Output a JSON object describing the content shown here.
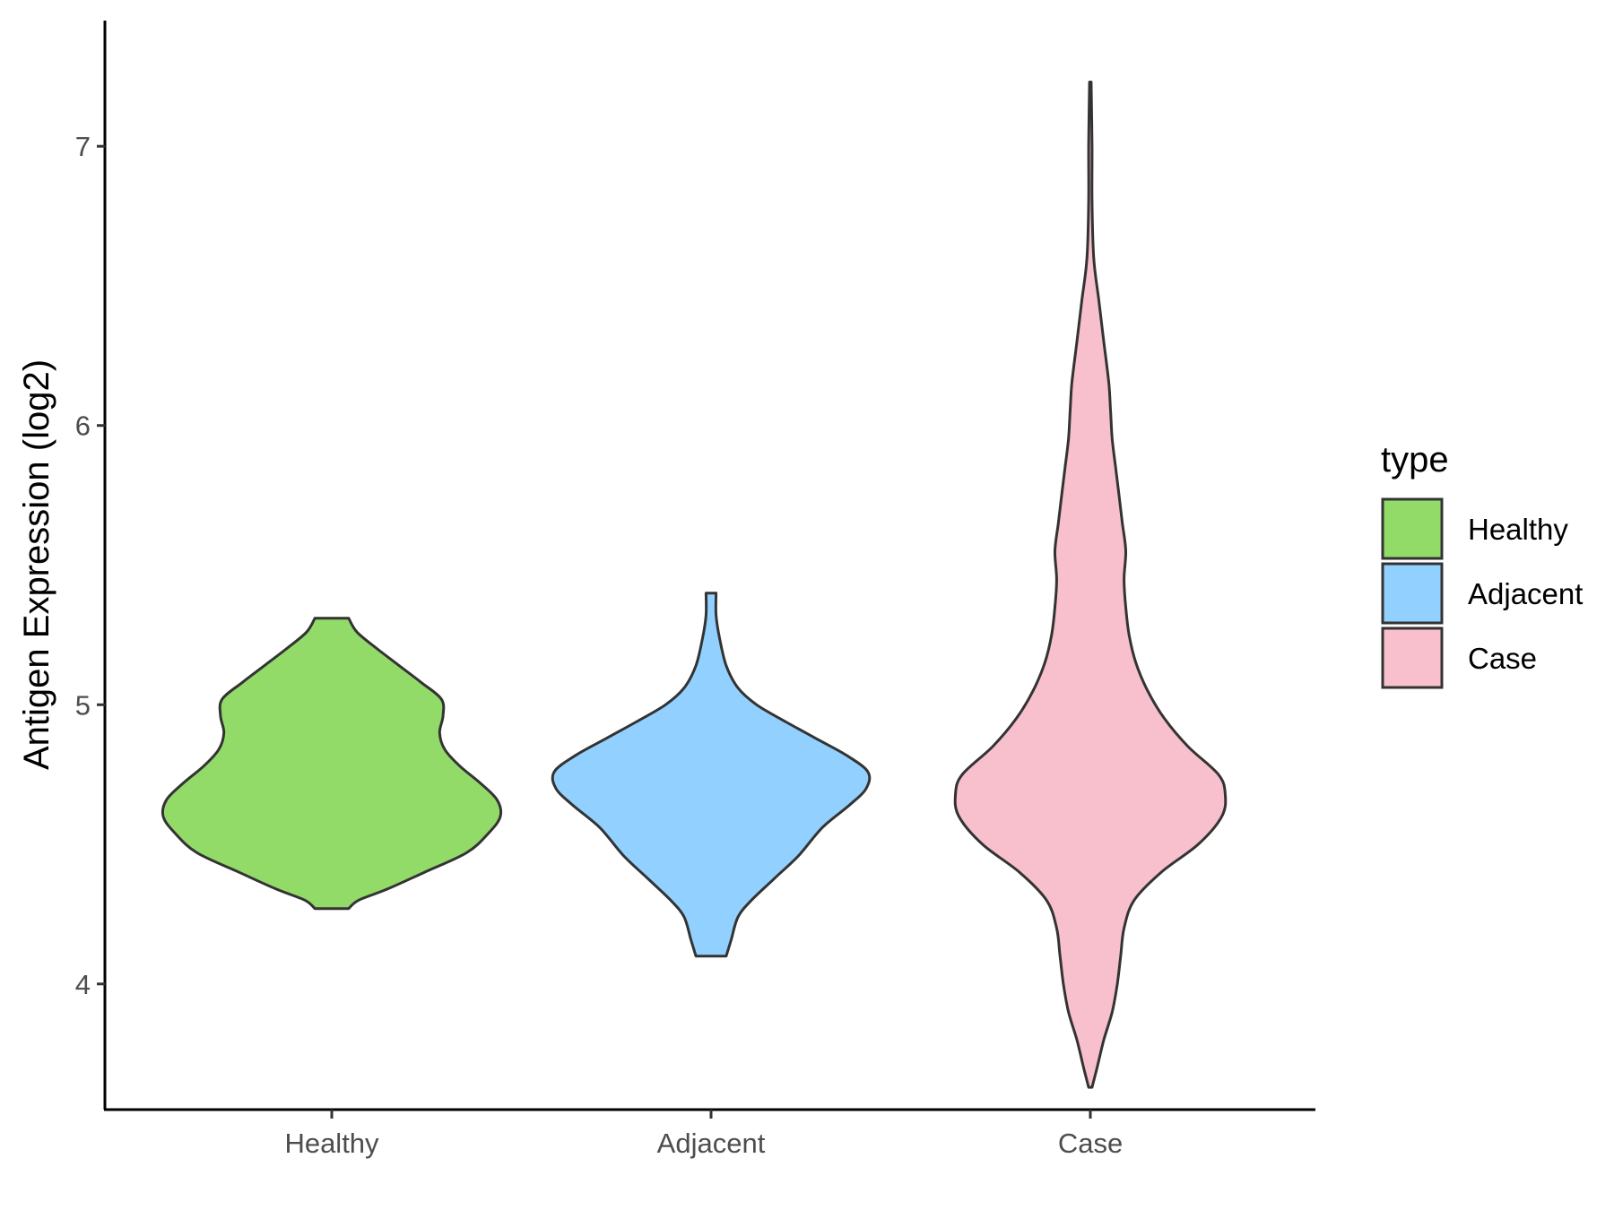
{
  "chart_data": {
    "type": "violin",
    "title": "",
    "xlabel": "",
    "ylabel": "Antigen Expression (log2)",
    "ylim": [
      3.55,
      7.45
    ],
    "yticks": [
      "4",
      "5",
      "6",
      "7"
    ],
    "grid": false,
    "categories": [
      "Healthy",
      "Adjacent",
      "Case"
    ],
    "legend": {
      "title": "type",
      "position": "right",
      "entries": [
        "Healthy",
        "Adjacent",
        "Case"
      ]
    },
    "colors": {
      "Healthy": "#93db69",
      "Adjacent": "#92d1ff",
      "Case": "#f7c0cc",
      "outline": "#333333"
    },
    "series": [
      {
        "name": "Healthy",
        "min": 4.27,
        "max": 5.31,
        "density": [
          [
            4.27,
            0.1
          ],
          [
            4.3,
            0.16
          ],
          [
            4.34,
            0.33
          ],
          [
            4.4,
            0.55
          ],
          [
            4.47,
            0.8
          ],
          [
            4.54,
            0.93
          ],
          [
            4.6,
            1.0
          ],
          [
            4.66,
            0.98
          ],
          [
            4.72,
            0.88
          ],
          [
            4.78,
            0.76
          ],
          [
            4.84,
            0.67
          ],
          [
            4.9,
            0.64
          ],
          [
            4.96,
            0.66
          ],
          [
            5.02,
            0.65
          ],
          [
            5.08,
            0.53
          ],
          [
            5.14,
            0.4
          ],
          [
            5.2,
            0.27
          ],
          [
            5.26,
            0.15
          ],
          [
            5.31,
            0.1
          ]
        ]
      },
      {
        "name": "Adjacent",
        "min": 4.1,
        "max": 5.4,
        "density": [
          [
            4.1,
            0.09
          ],
          [
            4.16,
            0.12
          ],
          [
            4.24,
            0.16
          ],
          [
            4.3,
            0.24
          ],
          [
            4.38,
            0.38
          ],
          [
            4.46,
            0.52
          ],
          [
            4.56,
            0.66
          ],
          [
            4.64,
            0.82
          ],
          [
            4.7,
            0.92
          ],
          [
            4.76,
            0.93
          ],
          [
            4.82,
            0.8
          ],
          [
            4.88,
            0.62
          ],
          [
            4.94,
            0.44
          ],
          [
            5.0,
            0.27
          ],
          [
            5.06,
            0.16
          ],
          [
            5.14,
            0.09
          ],
          [
            5.24,
            0.05
          ],
          [
            5.32,
            0.03
          ],
          [
            5.4,
            0.03
          ]
        ]
      },
      {
        "name": "Case",
        "min": 3.63,
        "max": 7.23,
        "density": [
          [
            3.63,
            0.01
          ],
          [
            3.7,
            0.04
          ],
          [
            3.8,
            0.08
          ],
          [
            3.9,
            0.13
          ],
          [
            4.0,
            0.16
          ],
          [
            4.1,
            0.18
          ],
          [
            4.2,
            0.2
          ],
          [
            4.3,
            0.26
          ],
          [
            4.4,
            0.42
          ],
          [
            4.5,
            0.64
          ],
          [
            4.6,
            0.78
          ],
          [
            4.68,
            0.8
          ],
          [
            4.75,
            0.76
          ],
          [
            4.85,
            0.58
          ],
          [
            4.95,
            0.44
          ],
          [
            5.05,
            0.34
          ],
          [
            5.15,
            0.27
          ],
          [
            5.25,
            0.23
          ],
          [
            5.35,
            0.21
          ],
          [
            5.45,
            0.2
          ],
          [
            5.55,
            0.21
          ],
          [
            5.65,
            0.19
          ],
          [
            5.75,
            0.17
          ],
          [
            5.85,
            0.15
          ],
          [
            5.95,
            0.13
          ],
          [
            6.05,
            0.12
          ],
          [
            6.15,
            0.11
          ],
          [
            6.3,
            0.08
          ],
          [
            6.45,
            0.05
          ],
          [
            6.6,
            0.02
          ],
          [
            6.8,
            0.01
          ],
          [
            7.0,
            0.01
          ],
          [
            7.23,
            0.005
          ]
        ]
      }
    ]
  }
}
